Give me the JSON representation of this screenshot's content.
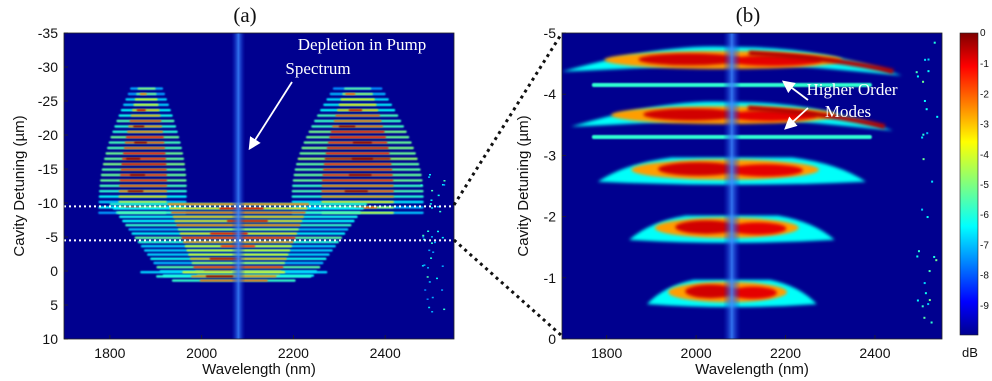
{
  "chart_data": [
    {
      "type": "heatmap",
      "title": "(a)",
      "xlabel": "Wavelength (nm)",
      "ylabel": "Cavity Detuning (µm)",
      "xlim": [
        1700,
        2550
      ],
      "ylim": [
        10,
        -35
      ],
      "xticks": [
        "1800",
        "2000",
        "2200",
        "2400"
      ],
      "yticks": [
        "-35",
        "-30",
        "-25",
        "-20",
        "-15",
        "-10",
        "-5",
        "0",
        "5",
        "10"
      ],
      "pump_wavelength_nm": 2080,
      "dotted_lines_at_detuning": [
        -9.5,
        -4.5
      ],
      "annotations": [
        "Depletion in Pump",
        "Spectrum"
      ],
      "comb_lobes": [
        {
          "center_nm": 1880,
          "half_width_nm": 80,
          "detuning_range": [
            -27,
            -8
          ]
        },
        {
          "center_nm": 2340,
          "half_width_nm": 120,
          "detuning_range": [
            -27,
            -8
          ]
        },
        {
          "center_nm": 2080,
          "half_width_nm": 330,
          "detuning_range": [
            -10,
            0.5
          ]
        },
        {
          "center_nm": 2070,
          "half_width_nm": 240,
          "detuning_range": [
            0,
            1.5
          ]
        }
      ]
    },
    {
      "type": "heatmap",
      "title": "(b)",
      "xlabel": "Wavelength (nm)",
      "ylabel": "Cavity Detuning (µm)",
      "xlim": [
        1700,
        2550
      ],
      "ylim": [
        0,
        -5
      ],
      "xticks": [
        "1800",
        "2000",
        "2200",
        "2400"
      ],
      "yticks": [
        "-5",
        "-4",
        "-3",
        "-2",
        "-1",
        "0"
      ],
      "pump_wavelength_nm": 2080,
      "annotations": [
        "Higher Order",
        "Modes"
      ],
      "bands": [
        {
          "detuning": -4.5,
          "half_width_nm": 380,
          "tilted": true
        },
        {
          "detuning": -3.6,
          "half_width_nm": 360,
          "tilted": true
        },
        {
          "detuning": -2.7,
          "half_width_nm": 300,
          "tilted": false
        },
        {
          "detuning": -1.75,
          "half_width_nm": 230,
          "tilted": false
        },
        {
          "detuning": -0.7,
          "half_width_nm": 190,
          "tilted": false
        }
      ],
      "higher_order_mode_rows": [
        -4.15,
        -3.3
      ]
    }
  ],
  "colorbar": {
    "unit": "dB",
    "top_label": "0",
    "tick_labels": [
      "-1",
      "-2",
      "-3",
      "-4",
      "-5",
      "-6",
      "-7",
      "-8",
      "-9"
    ],
    "colormap": "jet",
    "colors": [
      "#7f0000",
      "#ff0000",
      "#ffff00",
      "#00ffff",
      "#0000ff",
      "#00008f"
    ]
  }
}
